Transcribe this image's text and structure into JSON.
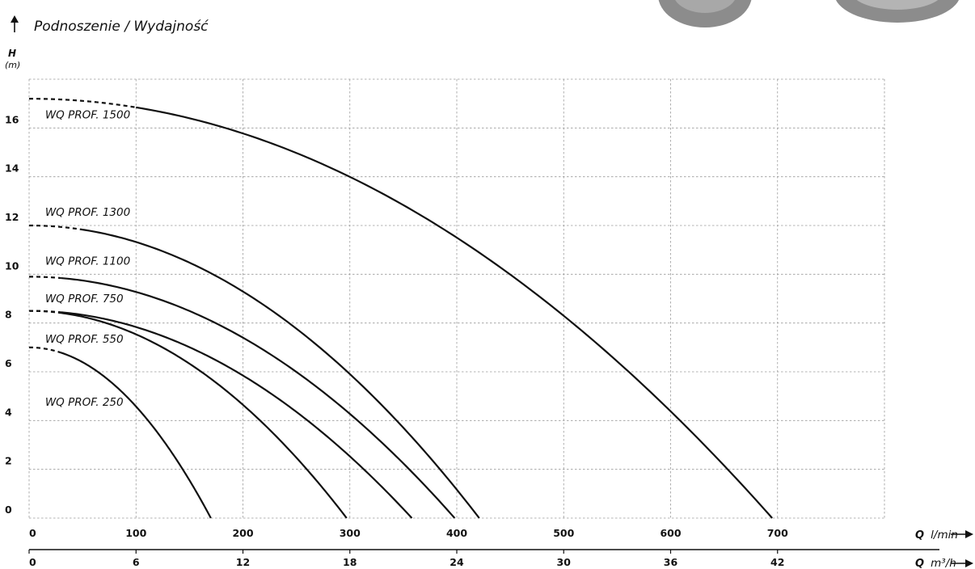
{
  "chart_data": {
    "type": "line",
    "title": "Podnoszenie / Wydajność",
    "ylabel": {
      "var": "H",
      "unit": "(m)"
    },
    "xlabel_primary": {
      "var": "Q",
      "unit": "l/min"
    },
    "xlabel_secondary": {
      "var": "Q",
      "unit": "m³/h"
    },
    "xlim": [
      0,
      800
    ],
    "ylim": [
      0,
      18
    ],
    "x_ticks": [
      0,
      100,
      200,
      300,
      400,
      500,
      600,
      700
    ],
    "x_tick_labels": [
      "0",
      "100",
      "200",
      "300",
      "400",
      "500",
      "600",
      "700"
    ],
    "x2_ticks": [
      0,
      100,
      200,
      300,
      400,
      500,
      600,
      700
    ],
    "x2_tick_labels": [
      "0",
      "6",
      "12",
      "18",
      "24",
      "30",
      "36",
      "42"
    ],
    "y_ticks": [
      0,
      2,
      4,
      6,
      8,
      10,
      12,
      14,
      16
    ],
    "y_tick_labels": [
      "0",
      "2",
      "4",
      "6",
      "8",
      "10",
      "12",
      "14",
      "16"
    ],
    "grid": true,
    "series": [
      {
        "name": "WQ PROF. 250",
        "shutoff_head": 7.0,
        "max_flow": 170,
        "dashed_to": 30,
        "label_anchor": [
          15,
          4.6
        ]
      },
      {
        "name": "WQ PROF. 550",
        "shutoff_head": 8.5,
        "max_flow": 297,
        "dashed_to": 30,
        "label_anchor": [
          15,
          7.2
        ]
      },
      {
        "name": "WQ PROF. 750",
        "shutoff_head": 8.5,
        "max_flow": 358,
        "dashed_to": 30,
        "label_anchor": [
          15,
          8.85
        ]
      },
      {
        "name": "WQ PROF. 1100",
        "shutoff_head": 9.9,
        "max_flow": 398,
        "dashed_to": 30,
        "label_anchor": [
          15,
          10.4
        ]
      },
      {
        "name": "WQ PROF. 1300",
        "shutoff_head": 12.0,
        "max_flow": 421,
        "dashed_to": 50,
        "label_anchor": [
          15,
          12.4
        ]
      },
      {
        "name": "WQ PROF. 1500",
        "shutoff_head": 17.2,
        "max_flow": 695,
        "dashed_to": 100,
        "label_anchor": [
          15,
          16.4
        ]
      }
    ]
  }
}
